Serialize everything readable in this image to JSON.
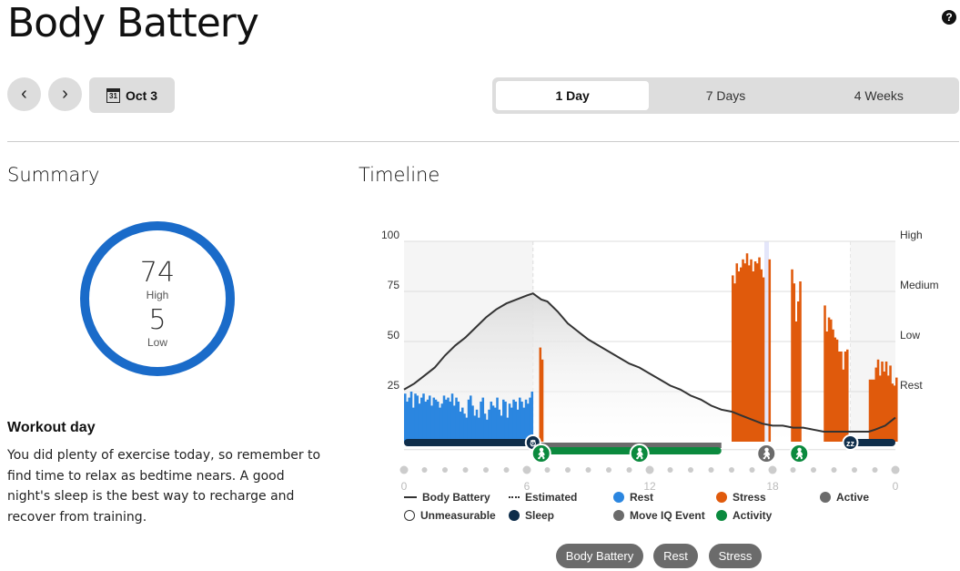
{
  "title": "Body Battery",
  "help_label": "?",
  "nav": {
    "prev": "‹",
    "next": "›",
    "date": "Oct 3",
    "calendar_day": "31"
  },
  "ranges": [
    {
      "label": "1 Day",
      "selected": true
    },
    {
      "label": "7 Days"
    },
    {
      "label": "4 Weeks"
    }
  ],
  "summary": {
    "heading": "Summary",
    "high_value": "74",
    "high_label": "High",
    "low_value": "5",
    "low_label": "Low",
    "ring_color": "#1a6bc9",
    "insight_title": "Workout day",
    "insight_text": "You did plenty of exercise today, so remember to find time to relax as bedtime nears. A good night's sleep is the best way to recharge and recover from training."
  },
  "timeline": {
    "heading": "Timeline"
  },
  "legend": [
    {
      "label": "Body Battery",
      "kind": "line"
    },
    {
      "label": "Estimated",
      "kind": "dots"
    },
    {
      "label": "Rest",
      "color": "#2b86e0"
    },
    {
      "label": "Stress",
      "color": "#e05a0c"
    },
    {
      "label": "Active",
      "color": "#6b6b6b"
    },
    {
      "label": "Unmeasurable",
      "kind": "ring"
    },
    {
      "label": "Sleep",
      "color": "#0f2e4b"
    },
    {
      "label": "Move IQ Event",
      "color": "#6b6b6b"
    },
    {
      "label": "Activity",
      "color": "#0b8a3e"
    }
  ],
  "toggles": [
    "Body Battery",
    "Rest",
    "Stress"
  ],
  "chart_data": {
    "type": "bar",
    "y_ticks": [
      100,
      75,
      50,
      25
    ],
    "right_labels": [
      "High",
      "Medium",
      "Low",
      "Rest"
    ],
    "x_ticks": [
      "0",
      "6",
      "12",
      "18",
      "0"
    ],
    "xlim": [
      0,
      24
    ],
    "ylim": [
      0,
      100
    ],
    "colors": {
      "rest": "#2b86e0",
      "stress": "#e05a0c",
      "line": "#333333",
      "sleep": "#0f2e4b",
      "activity": "#0b8a3e",
      "active": "#6b6b6b"
    },
    "body_battery": [
      [
        0,
        26
      ],
      [
        0.5,
        29
      ],
      [
        1,
        33
      ],
      [
        1.5,
        37
      ],
      [
        2,
        43
      ],
      [
        2.5,
        48
      ],
      [
        3,
        52
      ],
      [
        3.5,
        57
      ],
      [
        4,
        62
      ],
      [
        4.5,
        66
      ],
      [
        5,
        69
      ],
      [
        5.5,
        71
      ],
      [
        6,
        73
      ],
      [
        6.3,
        74
      ],
      [
        6.7,
        71
      ],
      [
        7,
        70
      ],
      [
        7.5,
        65
      ],
      [
        8,
        59
      ],
      [
        8.5,
        55
      ],
      [
        9,
        51
      ],
      [
        9.5,
        48
      ],
      [
        10,
        45
      ],
      [
        10.5,
        42
      ],
      [
        11,
        39
      ],
      [
        11.5,
        37
      ],
      [
        12,
        34
      ],
      [
        12.5,
        31
      ],
      [
        13,
        28
      ],
      [
        13.5,
        26
      ],
      [
        14,
        23
      ],
      [
        14.5,
        21
      ],
      [
        15,
        18
      ],
      [
        15.5,
        16
      ],
      [
        16,
        15
      ],
      [
        16.5,
        13
      ],
      [
        17,
        11
      ],
      [
        17.5,
        9
      ],
      [
        18,
        8
      ],
      [
        18.5,
        8
      ],
      [
        19,
        7
      ],
      [
        19.5,
        7
      ],
      [
        20,
        6
      ],
      [
        20.5,
        5
      ],
      [
        22.7,
        5
      ],
      [
        23,
        6
      ],
      [
        23.5,
        8
      ],
      [
        24,
        12
      ]
    ],
    "rest_start": 0,
    "rest_step": 0.1,
    "rest": [
      24,
      20,
      22,
      25,
      17,
      24,
      23,
      19,
      22,
      24,
      20,
      21,
      23,
      18,
      22,
      21,
      20,
      17,
      19,
      23,
      21,
      22,
      20,
      24,
      18,
      22,
      20,
      15,
      17,
      14,
      12,
      21,
      23,
      18,
      13,
      16,
      12,
      20,
      22,
      14,
      11,
      16,
      20,
      18,
      17,
      22,
      16,
      13,
      21,
      20,
      12,
      19,
      17,
      21,
      20,
      16,
      22,
      20,
      17,
      21,
      19,
      22,
      25
    ],
    "stress": [
      [
        6.6,
        47
      ],
      [
        6.7,
        41
      ],
      [
        16.0,
        83
      ],
      [
        16.1,
        79
      ],
      [
        16.2,
        89
      ],
      [
        16.3,
        85
      ],
      [
        16.4,
        87
      ],
      [
        16.5,
        91
      ],
      [
        16.6,
        89
      ],
      [
        16.7,
        94
      ],
      [
        16.8,
        88
      ],
      [
        16.9,
        91
      ],
      [
        17.0,
        85
      ],
      [
        17.1,
        90
      ],
      [
        17.2,
        89
      ],
      [
        17.3,
        92
      ],
      [
        17.4,
        86
      ],
      [
        17.5,
        82
      ],
      [
        17.8,
        91
      ],
      [
        18.9,
        86
      ],
      [
        19.0,
        79
      ],
      [
        19.1,
        60
      ],
      [
        19.2,
        70
      ],
      [
        19.3,
        80
      ],
      [
        20.5,
        68
      ],
      [
        20.6,
        55
      ],
      [
        20.7,
        62
      ],
      [
        20.8,
        61
      ],
      [
        20.9,
        56
      ],
      [
        21.0,
        52
      ],
      [
        21.1,
        51
      ],
      [
        21.2,
        45
      ],
      [
        21.3,
        45
      ],
      [
        21.4,
        36
      ],
      [
        21.5,
        45
      ],
      [
        21.6,
        46
      ],
      [
        22.7,
        31
      ],
      [
        22.8,
        31
      ],
      [
        22.9,
        31
      ],
      [
        23.0,
        37
      ],
      [
        23.1,
        41
      ],
      [
        23.2,
        33
      ],
      [
        23.3,
        40
      ],
      [
        23.4,
        35
      ],
      [
        23.5,
        40
      ],
      [
        23.6,
        33
      ],
      [
        23.7,
        38
      ],
      [
        23.8,
        29
      ],
      [
        23.9,
        28
      ],
      [
        24.0,
        32
      ]
    ],
    "sleep_periods": [
      [
        0,
        6.3
      ],
      [
        21.8,
        24
      ]
    ],
    "activity_periods": [
      [
        6.5,
        15.5
      ]
    ],
    "active_periods": [
      [
        6.5,
        15.5
      ]
    ],
    "events": [
      {
        "h": 6.3,
        "type": "sleep",
        "icon": "alarm-icon"
      },
      {
        "h": 6.7,
        "type": "activity",
        "icon": "walk-icon"
      },
      {
        "h": 11.5,
        "type": "activity",
        "icon": "walk-icon"
      },
      {
        "h": 17.7,
        "type": "active",
        "icon": "walk-icon"
      },
      {
        "h": 19.3,
        "type": "activity",
        "icon": "walk-icon"
      },
      {
        "h": 21.8,
        "type": "sleep",
        "icon": "zzz-icon"
      }
    ]
  }
}
